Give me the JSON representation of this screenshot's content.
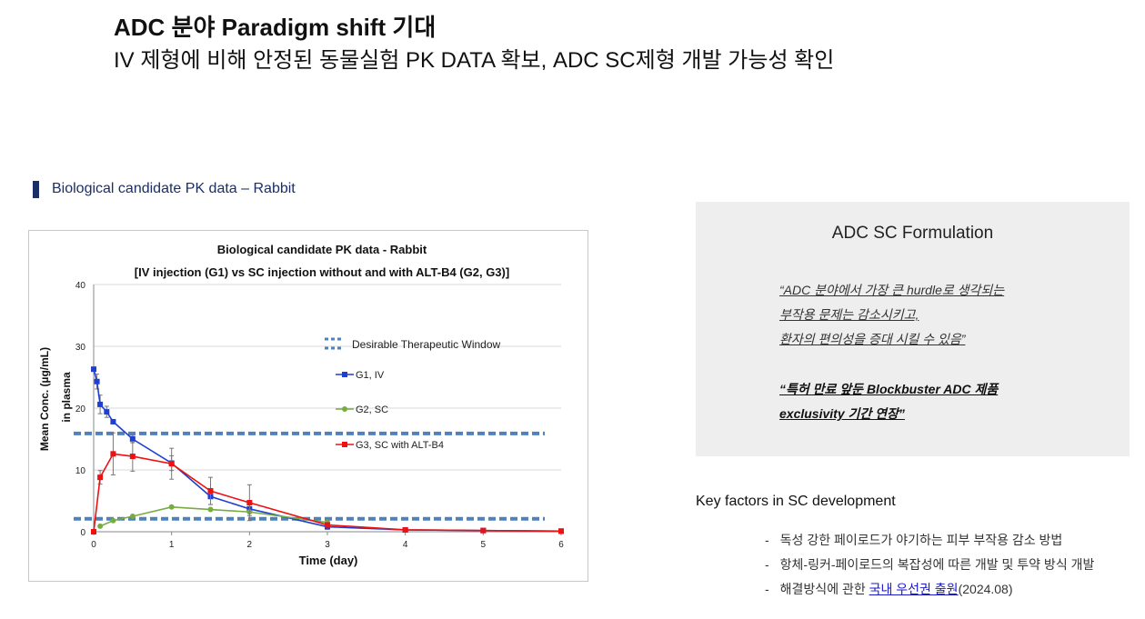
{
  "header": {
    "title": "ADC 분야 Paradigm shift 기대",
    "subtitle": "IV 제형에 비해 안정된 동물실험 PK DATA 확보, ADC SC제형 개발 가능성 확인"
  },
  "section": {
    "label": "Biological candidate PK data – Rabbit"
  },
  "chart_data": {
    "type": "line",
    "title": "Biological candidate PK data - Rabbit",
    "subtitle": "[IV injection (G1) vs SC injection without and with ALT-B4 (G2, G3)]",
    "xlabel": "Time (day)",
    "ylabel": "Mean Conc. (µg/mL)\nin plasma",
    "ylabel_line1": "Mean Conc. (µg/mL)",
    "ylabel_line2": "in plasma",
    "xlim": [
      0,
      6
    ],
    "ylim": [
      0,
      40
    ],
    "x_ticks": [
      0,
      1,
      2,
      3,
      4,
      5,
      6
    ],
    "y_ticks": [
      0,
      10,
      20,
      30,
      40
    ],
    "grid": "horizontal",
    "legend_position": "right",
    "therapeutic_window": {
      "name": "Desirable Therapeutic Window",
      "lower": 2.1,
      "upper": 15.9,
      "color": "#4f81bd"
    },
    "series": [
      {
        "name": "G1, IV",
        "color": "#1f3fd1",
        "x": [
          0,
          0.042,
          0.083,
          0.167,
          0.25,
          0.5,
          1,
          1.5,
          2,
          3,
          4,
          5,
          6
        ],
        "y": [
          26.3,
          24.3,
          20.6,
          19.4,
          17.8,
          15,
          11.1,
          5.7,
          3.7,
          0.8,
          0.3,
          0.2,
          0.1
        ],
        "err": [
          0,
          1.2,
          1.5,
          0.9,
          0,
          0.6,
          1.2,
          1.3,
          1.1,
          0.4,
          0,
          0,
          0
        ]
      },
      {
        "name": "G2, SC",
        "color": "#77ab43",
        "x": [
          0.083,
          0.25,
          0.5,
          1,
          1.5,
          2,
          3
        ],
        "y": [
          0.9,
          1.8,
          2.5,
          4,
          3.6,
          3.2,
          1.5
        ],
        "err": [
          0,
          0,
          0,
          0,
          0,
          0,
          0
        ]
      },
      {
        "name": "G3, SC with ALT-B4",
        "color": "#ee1111",
        "x": [
          0,
          0.083,
          0.25,
          0.5,
          1,
          1.5,
          2,
          3,
          4,
          5,
          6
        ],
        "y": [
          0,
          8.8,
          12.6,
          12.2,
          11,
          6.6,
          4.7,
          1.1,
          0.3,
          0.2,
          0.1
        ],
        "err": [
          0,
          1.1,
          3.4,
          2.4,
          2.5,
          2.2,
          2.9,
          0.3,
          0,
          0,
          0
        ]
      }
    ]
  },
  "panel": {
    "title": "ADC SC Formulation",
    "quote1_lines": [
      "“ADC 분야에서 가장 큰 hurdle로 생각되는",
      "부작용 문제는 감소시키고,",
      "환자의 편의성을 증대 시킬 수 있음”"
    ],
    "quote2_lines": [
      "“특허 만료 앞둔 Blockbuster ADC 제품",
      "exclusivity 기간 연장”"
    ]
  },
  "key_factors": {
    "title": "Key factors in SC development",
    "item1": "독성 강한 페이로드가 야기하는 피부 부작용 감소 방법",
    "item2": "항체-링커-페이로드의 복잡성에 따른 개발 및 투약 방식 개발",
    "item3_prefix": "해결방식에 관한 ",
    "item3_link": "국내 우선권 출원",
    "item3_suffix": "(2024.08)"
  }
}
